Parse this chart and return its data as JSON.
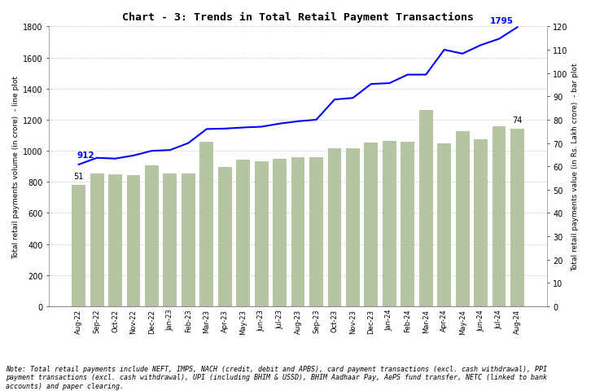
{
  "title": "Chart - 3: Trends in Total Retail Payment Transactions",
  "categories": [
    "Aug-22",
    "Sep-22",
    "Oct-22",
    "Nov-22",
    "Dec-22",
    "Jan-23",
    "Feb-23",
    "Mar-23",
    "Apr-23",
    "May-23",
    "Jun-23",
    "Jul-23",
    "Aug-23",
    "Sep-23",
    "Oct-23",
    "Nov-23",
    "Dec-23",
    "Jan-24",
    "Feb-24",
    "Mar-24",
    "Apr-24",
    "May-24",
    "Jun-24",
    "Jul-24",
    "Aug-24"
  ],
  "bar_values": [
    783,
    854,
    848,
    843,
    905,
    853,
    853,
    1060,
    897,
    941,
    932,
    946,
    958,
    957,
    1015,
    1017,
    1054,
    1062,
    1058,
    1264,
    1050,
    1129,
    1076,
    1156,
    1141
  ],
  "line_values": [
    912,
    955,
    950,
    970,
    1000,
    1005,
    1050,
    1140,
    1143,
    1150,
    1155,
    1175,
    1190,
    1200,
    1330,
    1340,
    1430,
    1435,
    1490,
    1490,
    1650,
    1625,
    1680,
    1720,
    1795
  ],
  "bar_color": "#b5c4a1",
  "line_color": "#0000ff",
  "ylabel_left": "Total retail payments volume (in crore)  - line plot",
  "ylabel_right": "Total retail payments value (in Rs. Lakh crore)  - bar plot",
  "left_ylim": [
    0,
    1800
  ],
  "right_ylim": [
    0,
    120
  ],
  "left_yticks": [
    0,
    200,
    400,
    600,
    800,
    1000,
    1200,
    1400,
    1600,
    1800
  ],
  "right_yticks": [
    0,
    10,
    20,
    30,
    40,
    50,
    60,
    70,
    80,
    90,
    100,
    110,
    120
  ],
  "first_bar_label": "51",
  "last_bar_label": "74",
  "first_line_label": "912",
  "last_line_label": "1795",
  "note_line1": "Note: Total retail payments include NEFT, IMPS, NACH (credit, debit and APBS), card payment transactions (excl. cash withdrawal), PPI",
  "note_line2": "payment transactions (excl. cash withdrawal), UPI (including BHIM & USSD), BHIM Aadhaar Pay, AePS fund transfer, NETC (linked to bank",
  "note_line3": "accounts) and paper clearing.",
  "bg_color": "#ffffff",
  "grid_color": "#aaaaaa"
}
